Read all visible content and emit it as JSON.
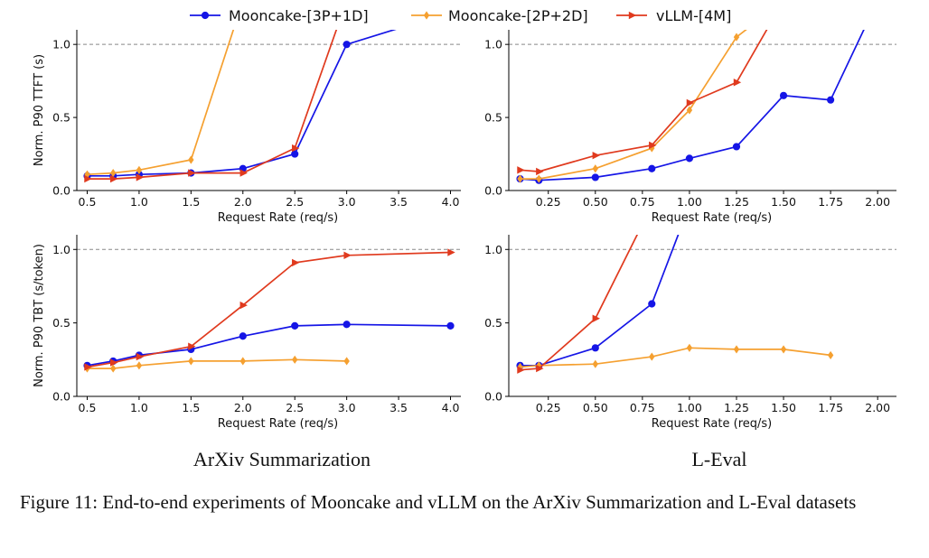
{
  "legend": [
    {
      "label": "Mooncake-[3P+1D]",
      "color": "#1515e6",
      "marker": "circle"
    },
    {
      "label": "Mooncake-[2P+2D]",
      "color": "#f5a030",
      "marker": "diamond"
    },
    {
      "label": "vLLM-[4M]",
      "color": "#e03a1e",
      "marker": "triangle-right"
    }
  ],
  "subtitles": {
    "left": "ArXiv Summarization",
    "right": "L-Eval"
  },
  "caption": "Figure 11: End-to-end experiments of Mooncake and vLLM on the ArXiv Summarization and L-Eval datasets",
  "chart_data": [
    {
      "type": "line",
      "panel": "ArXiv Summarization - TTFT",
      "xlabel": "Request Rate (req/s)",
      "ylabel": "Norm. P90 TTFT (s)",
      "xlim": [
        0.4,
        4.1
      ],
      "ylim": [
        0,
        1.1
      ],
      "xticks": [
        "0.5",
        "1.0",
        "1.5",
        "2.0",
        "2.5",
        "3.0",
        "3.5",
        "4.0"
      ],
      "yticks": [
        "0.0",
        "0.5",
        "1.0"
      ],
      "hline": 1.0,
      "series": [
        {
          "name": "Mooncake-[3P+1D]",
          "x": [
            0.5,
            0.75,
            1.0,
            1.5,
            2.0,
            2.5,
            3.0,
            4.0
          ],
          "y": [
            0.1,
            0.1,
            0.11,
            0.12,
            0.15,
            0.25,
            1.0,
            1.22
          ]
        },
        {
          "name": "Mooncake-[2P+2D]",
          "x": [
            0.5,
            0.75,
            1.0,
            1.5,
            2.0
          ],
          "y": [
            0.11,
            0.12,
            0.14,
            0.21,
            1.3
          ]
        },
        {
          "name": "vLLM-[4M]",
          "x": [
            0.5,
            0.75,
            1.0,
            1.5,
            2.0,
            2.5,
            3.0
          ],
          "y": [
            0.08,
            0.08,
            0.09,
            0.12,
            0.12,
            0.29,
            1.3
          ]
        }
      ]
    },
    {
      "type": "line",
      "panel": "L-Eval - TTFT",
      "xlabel": "Request Rate (req/s)",
      "ylabel": "",
      "xlim": [
        0.04,
        2.1
      ],
      "ylim": [
        0,
        1.1
      ],
      "xticks": [
        "0.25",
        "0.50",
        "0.75",
        "1.00",
        "1.25",
        "1.50",
        "1.75",
        "2.00"
      ],
      "yticks": [
        "0.0",
        "0.5",
        "1.0"
      ],
      "hline": 1.0,
      "series": [
        {
          "name": "Mooncake-[3P+1D]",
          "x": [
            0.1,
            0.2,
            0.5,
            0.8,
            1.0,
            1.25,
            1.5,
            1.75,
            2.0
          ],
          "y": [
            0.08,
            0.07,
            0.09,
            0.15,
            0.22,
            0.3,
            0.65,
            0.62,
            1.3
          ]
        },
        {
          "name": "Mooncake-[2P+2D]",
          "x": [
            0.1,
            0.2,
            0.5,
            0.8,
            1.0,
            1.25,
            1.5
          ],
          "y": [
            0.08,
            0.08,
            0.15,
            0.29,
            0.55,
            1.05,
            1.3
          ]
        },
        {
          "name": "vLLM-[4M]",
          "x": [
            0.1,
            0.2,
            0.5,
            0.8,
            1.0,
            1.25,
            1.5
          ],
          "y": [
            0.14,
            0.13,
            0.24,
            0.31,
            0.6,
            0.74,
            1.3
          ]
        }
      ]
    },
    {
      "type": "line",
      "panel": "ArXiv Summarization - TBT",
      "xlabel": "Request Rate (req/s)",
      "ylabel": "Norm. P90 TBT (s/token)",
      "xlim": [
        0.4,
        4.1
      ],
      "ylim": [
        0,
        1.1
      ],
      "xticks": [
        "0.5",
        "1.0",
        "1.5",
        "2.0",
        "2.5",
        "3.0",
        "3.5",
        "4.0"
      ],
      "yticks": [
        "0.0",
        "0.5",
        "1.0"
      ],
      "hline": 1.0,
      "series": [
        {
          "name": "Mooncake-[3P+1D]",
          "x": [
            0.5,
            0.75,
            1.0,
            1.5,
            2.0,
            2.5,
            3.0,
            4.0
          ],
          "y": [
            0.21,
            0.24,
            0.28,
            0.32,
            0.41,
            0.48,
            0.49,
            0.48
          ]
        },
        {
          "name": "Mooncake-[2P+2D]",
          "x": [
            0.5,
            0.75,
            1.0,
            1.5,
            2.0,
            2.5,
            3.0
          ],
          "y": [
            0.19,
            0.19,
            0.21,
            0.24,
            0.24,
            0.25,
            0.24
          ]
        },
        {
          "name": "vLLM-[4M]",
          "x": [
            0.5,
            0.75,
            1.0,
            1.5,
            2.0,
            2.5,
            3.0,
            4.0
          ],
          "y": [
            0.2,
            0.23,
            0.27,
            0.34,
            0.62,
            0.91,
            0.96,
            0.98
          ]
        }
      ]
    },
    {
      "type": "line",
      "panel": "L-Eval - TBT",
      "xlabel": "Request Rate (req/s)",
      "ylabel": "",
      "xlim": [
        0.04,
        2.1
      ],
      "ylim": [
        0,
        1.1
      ],
      "xticks": [
        "0.25",
        "0.50",
        "0.75",
        "1.00",
        "1.25",
        "1.50",
        "1.75",
        "2.00"
      ],
      "yticks": [
        "0.0",
        "0.5",
        "1.0"
      ],
      "hline": 1.0,
      "series": [
        {
          "name": "Mooncake-[3P+1D]",
          "x": [
            0.1,
            0.2,
            0.5,
            0.8,
            1.0
          ],
          "y": [
            0.21,
            0.21,
            0.33,
            0.63,
            1.3
          ]
        },
        {
          "name": "Mooncake-[2P+2D]",
          "x": [
            0.1,
            0.2,
            0.5,
            0.8,
            1.0,
            1.25,
            1.5,
            1.75
          ],
          "y": [
            0.2,
            0.21,
            0.22,
            0.27,
            0.33,
            0.32,
            0.32,
            0.28
          ]
        },
        {
          "name": "vLLM-[4M]",
          "x": [
            0.1,
            0.2,
            0.5,
            0.8
          ],
          "y": [
            0.18,
            0.19,
            0.53,
            1.3
          ]
        }
      ]
    }
  ]
}
